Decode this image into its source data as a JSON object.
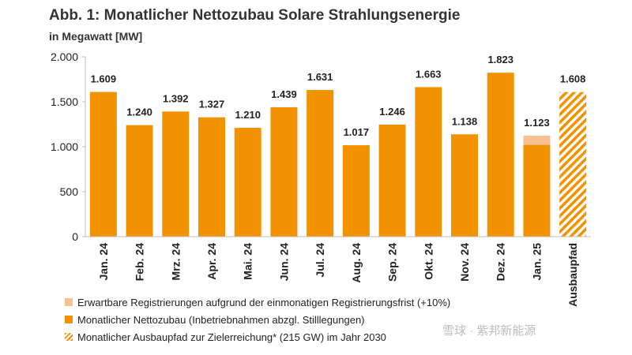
{
  "title": "Abb. 1: Monatlicher Nettozubau Solare Strahlungsenergie",
  "subtitle": "in Megawatt [MW]",
  "chart_data": {
    "type": "bar",
    "categories": [
      "Jan. 24",
      "Feb. 24",
      "Mrz. 24",
      "Apr. 24",
      "Mai. 24",
      "Jun. 24",
      "Jul. 24",
      "Aug. 24",
      "Sep. 24",
      "Okt. 24",
      "Nov. 24",
      "Dez. 24",
      "Jan. 25",
      "Ausbaupfad"
    ],
    "values": [
      1609,
      1240,
      1392,
      1327,
      1210,
      1439,
      1631,
      1017,
      1246,
      1663,
      1138,
      1823,
      1123,
      1608
    ],
    "value_labels": [
      "1.609",
      "1.240",
      "1.392",
      "1.327",
      "1.210",
      "1.439",
      "1.631",
      "1.017",
      "1.246",
      "1.663",
      "1.138",
      "1.823",
      "1.123",
      "1.608"
    ],
    "expected_additional": {
      "category": "Jan. 25",
      "base": 1021,
      "total": 1123
    },
    "target_category": "Ausbaupfad",
    "ylim": [
      0,
      2000
    ],
    "yticks": [
      0,
      500,
      1000,
      1500,
      2000
    ],
    "ytick_labels": [
      "0",
      "500",
      "1.000",
      "1.500",
      "2.000"
    ],
    "grid": false,
    "legend_position": "bottom-left",
    "colors": {
      "bar": "#f39200",
      "expected": "#f8c191",
      "hatch_bg": "#ffffff"
    }
  },
  "legend": [
    {
      "label": "Erwartbare Registrierungen aufgrund der einmonatigen Registrierungsfrist (+10%)",
      "style": "light"
    },
    {
      "label": "Monatlicher Nettozubau (Inbetriebnahmen abzgl. Stilllegungen)",
      "style": "solid"
    },
    {
      "label": "Monatlicher Ausbaupfad zur Zielerreichung* (215 GW) im Jahr 2030",
      "style": "hatch"
    }
  ],
  "watermark": "雪球 · 紫邦新能源"
}
